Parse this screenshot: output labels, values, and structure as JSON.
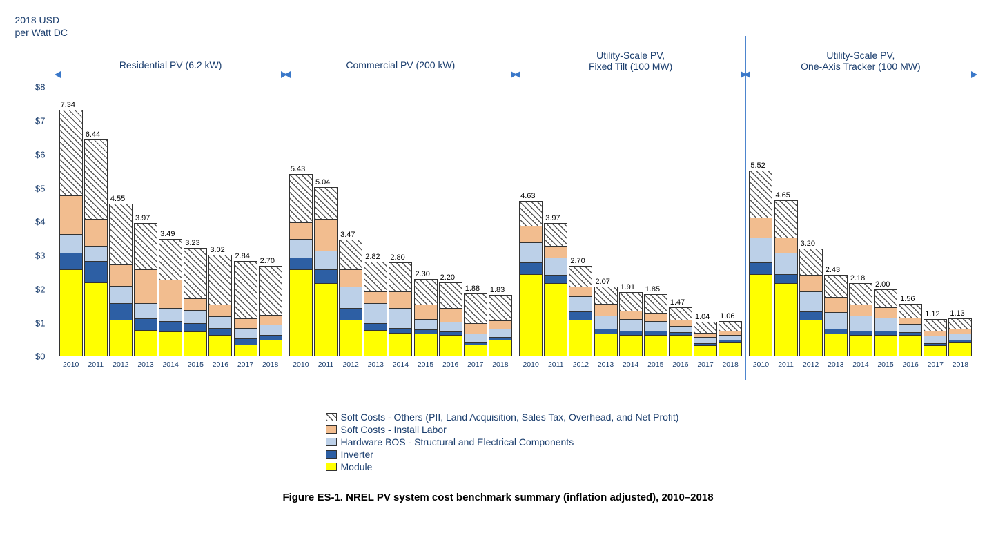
{
  "y_axis_title_line1": "2018 USD",
  "y_axis_title_line2": "per Watt DC",
  "ylim": [
    0,
    8
  ],
  "ytick_step": 1,
  "ytick_prefix": "$",
  "years": [
    "2010",
    "2011",
    "2012",
    "2013",
    "2014",
    "2015",
    "2016",
    "2017",
    "2018"
  ],
  "colors": {
    "module": "#ffff00",
    "inverter": "#2d5fa4",
    "hardware_bos": "#bcd0e8",
    "install_labor": "#f2bd8f",
    "soft_others_bg": "#ffffff",
    "soft_others_hatch": "#555555",
    "axis": "#333333",
    "text": "#1a3d6d",
    "header_line": "#3a78c9"
  },
  "stack_order": [
    "module",
    "inverter",
    "hardware_bos",
    "install_labor",
    "soft_others"
  ],
  "legend": [
    {
      "key": "soft_others",
      "label": "Soft Costs - Others (PII, Land Acquisition, Sales Tax, Overhead, and Net Profit)"
    },
    {
      "key": "install_labor",
      "label": "Soft Costs - Install Labor"
    },
    {
      "key": "hardware_bos",
      "label": "Hardware BOS - Structural and Electrical Components"
    },
    {
      "key": "inverter",
      "label": "Inverter"
    },
    {
      "key": "module",
      "label": "Module"
    }
  ],
  "groups": [
    {
      "title": "Residential PV (6.2 kW)",
      "bars": [
        {
          "total": 7.34,
          "segments": {
            "module": 2.6,
            "inverter": 0.5,
            "hardware_bos": 0.55,
            "install_labor": 1.15,
            "soft_others": 2.54
          }
        },
        {
          "total": 6.44,
          "segments": {
            "module": 2.2,
            "inverter": 0.65,
            "hardware_bos": 0.45,
            "install_labor": 0.8,
            "soft_others": 2.34
          }
        },
        {
          "total": 4.55,
          "segments": {
            "module": 1.1,
            "inverter": 0.5,
            "hardware_bos": 0.5,
            "install_labor": 0.65,
            "soft_others": 1.8
          }
        },
        {
          "total": 3.97,
          "segments": {
            "module": 0.8,
            "inverter": 0.35,
            "hardware_bos": 0.45,
            "install_labor": 1.0,
            "soft_others": 1.37
          }
        },
        {
          "total": 3.49,
          "segments": {
            "module": 0.75,
            "inverter": 0.3,
            "hardware_bos": 0.4,
            "install_labor": 0.85,
            "soft_others": 1.19
          }
        },
        {
          "total": 3.23,
          "segments": {
            "module": 0.75,
            "inverter": 0.25,
            "hardware_bos": 0.4,
            "install_labor": 0.35,
            "soft_others": 1.48
          }
        },
        {
          "total": 3.02,
          "segments": {
            "module": 0.65,
            "inverter": 0.2,
            "hardware_bos": 0.35,
            "install_labor": 0.35,
            "soft_others": 1.47
          }
        },
        {
          "total": 2.84,
          "segments": {
            "module": 0.35,
            "inverter": 0.2,
            "hardware_bos": 0.3,
            "install_labor": 0.3,
            "soft_others": 1.69
          }
        },
        {
          "total": 2.7,
          "segments": {
            "module": 0.5,
            "inverter": 0.15,
            "hardware_bos": 0.3,
            "install_labor": 0.3,
            "soft_others": 1.45
          }
        }
      ]
    },
    {
      "title": "Commercial PV (200 kW)",
      "bars": [
        {
          "total": 5.43,
          "segments": {
            "module": 2.6,
            "inverter": 0.35,
            "hardware_bos": 0.55,
            "install_labor": 0.5,
            "soft_others": 1.43
          }
        },
        {
          "total": 5.04,
          "segments": {
            "module": 2.2,
            "inverter": 0.4,
            "hardware_bos": 0.55,
            "install_labor": 0.95,
            "soft_others": 0.94
          }
        },
        {
          "total": 3.47,
          "segments": {
            "module": 1.1,
            "inverter": 0.35,
            "hardware_bos": 0.65,
            "install_labor": 0.5,
            "soft_others": 0.87
          }
        },
        {
          "total": 2.82,
          "segments": {
            "module": 0.8,
            "inverter": 0.2,
            "hardware_bos": 0.6,
            "install_labor": 0.35,
            "soft_others": 0.87
          }
        },
        {
          "total": 2.8,
          "segments": {
            "module": 0.7,
            "inverter": 0.15,
            "hardware_bos": 0.6,
            "install_labor": 0.5,
            "soft_others": 0.85
          }
        },
        {
          "total": 2.3,
          "segments": {
            "module": 0.7,
            "inverter": 0.12,
            "hardware_bos": 0.3,
            "install_labor": 0.45,
            "soft_others": 0.73
          }
        },
        {
          "total": 2.2,
          "segments": {
            "module": 0.65,
            "inverter": 0.1,
            "hardware_bos": 0.3,
            "install_labor": 0.4,
            "soft_others": 0.75
          }
        },
        {
          "total": 1.88,
          "segments": {
            "module": 0.35,
            "inverter": 0.1,
            "hardware_bos": 0.25,
            "install_labor": 0.3,
            "soft_others": 0.88
          }
        },
        {
          "total": 1.83,
          "segments": {
            "module": 0.5,
            "inverter": 0.08,
            "hardware_bos": 0.25,
            "install_labor": 0.25,
            "soft_others": 0.75
          }
        }
      ]
    },
    {
      "title": "Utility-Scale PV,\nFixed Tilt (100 MW)",
      "bars": [
        {
          "total": 4.63,
          "segments": {
            "module": 2.45,
            "inverter": 0.35,
            "hardware_bos": 0.6,
            "install_labor": 0.5,
            "soft_others": 0.73
          }
        },
        {
          "total": 3.97,
          "segments": {
            "module": 2.2,
            "inverter": 0.25,
            "hardware_bos": 0.5,
            "install_labor": 0.35,
            "soft_others": 0.67
          }
        },
        {
          "total": 2.7,
          "segments": {
            "module": 1.1,
            "inverter": 0.25,
            "hardware_bos": 0.45,
            "install_labor": 0.3,
            "soft_others": 0.6
          }
        },
        {
          "total": 2.07,
          "segments": {
            "module": 0.7,
            "inverter": 0.14,
            "hardware_bos": 0.4,
            "install_labor": 0.35,
            "soft_others": 0.48
          }
        },
        {
          "total": 1.91,
          "segments": {
            "module": 0.65,
            "inverter": 0.12,
            "hardware_bos": 0.35,
            "install_labor": 0.25,
            "soft_others": 0.54
          }
        },
        {
          "total": 1.85,
          "segments": {
            "module": 0.65,
            "inverter": 0.12,
            "hardware_bos": 0.3,
            "install_labor": 0.25,
            "soft_others": 0.53
          }
        },
        {
          "total": 1.47,
          "segments": {
            "module": 0.65,
            "inverter": 0.08,
            "hardware_bos": 0.2,
            "install_labor": 0.18,
            "soft_others": 0.36
          }
        },
        {
          "total": 1.04,
          "segments": {
            "module": 0.35,
            "inverter": 0.06,
            "hardware_bos": 0.18,
            "install_labor": 0.12,
            "soft_others": 0.33
          }
        },
        {
          "total": 1.06,
          "segments": {
            "module": 0.45,
            "inverter": 0.05,
            "hardware_bos": 0.16,
            "install_labor": 0.12,
            "soft_others": 0.28
          }
        }
      ]
    },
    {
      "title": "Utility-Scale PV,\nOne-Axis Tracker (100 MW)",
      "bars": [
        {
          "total": 5.52,
          "segments": {
            "module": 2.45,
            "inverter": 0.35,
            "hardware_bos": 0.75,
            "install_labor": 0.6,
            "soft_others": 1.37
          }
        },
        {
          "total": 4.65,
          "segments": {
            "module": 2.2,
            "inverter": 0.25,
            "hardware_bos": 0.65,
            "install_labor": 0.45,
            "soft_others": 1.1
          }
        },
        {
          "total": 3.2,
          "segments": {
            "module": 1.1,
            "inverter": 0.25,
            "hardware_bos": 0.6,
            "install_labor": 0.5,
            "soft_others": 0.75
          }
        },
        {
          "total": 2.43,
          "segments": {
            "module": 0.7,
            "inverter": 0.14,
            "hardware_bos": 0.5,
            "install_labor": 0.45,
            "soft_others": 0.64
          }
        },
        {
          "total": 2.18,
          "segments": {
            "module": 0.65,
            "inverter": 0.12,
            "hardware_bos": 0.45,
            "install_labor": 0.35,
            "soft_others": 0.61
          }
        },
        {
          "total": 2.0,
          "segments": {
            "module": 0.65,
            "inverter": 0.12,
            "hardware_bos": 0.4,
            "install_labor": 0.3,
            "soft_others": 0.53
          }
        },
        {
          "total": 1.56,
          "segments": {
            "module": 0.65,
            "inverter": 0.08,
            "hardware_bos": 0.25,
            "install_labor": 0.2,
            "soft_others": 0.38
          }
        },
        {
          "total": 1.12,
          "segments": {
            "module": 0.35,
            "inverter": 0.06,
            "hardware_bos": 0.22,
            "install_labor": 0.15,
            "soft_others": 0.34
          }
        },
        {
          "total": 1.13,
          "segments": {
            "module": 0.45,
            "inverter": 0.05,
            "hardware_bos": 0.2,
            "install_labor": 0.14,
            "soft_others": 0.29
          }
        }
      ]
    }
  ],
  "caption": "Figure ES-1. NREL PV system cost benchmark summary (inflation adjusted), 2010–2018",
  "chart_type": "stacked-bar",
  "font_family": "Arial",
  "title_fontsize": 14,
  "bar_label_fontsize": 11,
  "axis_fontsize": 13,
  "x_tick_fontsize": 10.5,
  "legend_fontsize": 14,
  "caption_fontsize": 15,
  "background_color": "#ffffff"
}
